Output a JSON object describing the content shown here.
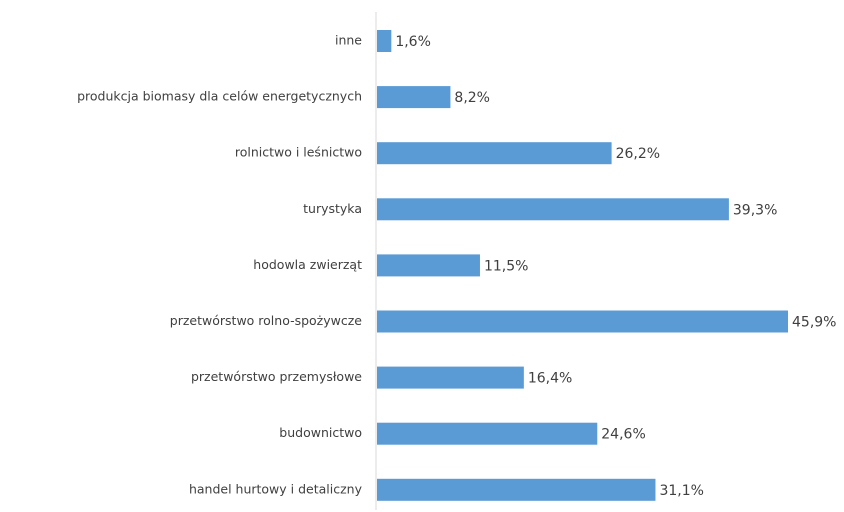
{
  "chart_data": {
    "type": "bar",
    "orientation": "horizontal",
    "title": "",
    "xlabel": "",
    "ylabel": "",
    "grid": false,
    "legend": "none",
    "bar_color": "#5b9bd5",
    "axis_color": "#d9d9d9",
    "xlim": [
      0,
      46
    ],
    "categories": [
      "inne",
      "produkcja biomasy dla celów energetycznych",
      "rolnictwo i leśnictwo",
      "turystyka",
      "hodowla zwierząt",
      "przetwórstwo rolno-spożywcze",
      "przetwórstwo przemysłowe",
      "budownictwo",
      "handel hurtowy i detaliczny"
    ],
    "values": [
      1.6,
      8.2,
      26.2,
      39.3,
      11.5,
      45.9,
      16.4,
      24.6,
      31.1
    ],
    "data_labels": [
      "1,6%",
      "8,2%",
      "26,2%",
      "39,3%",
      "11,5%",
      "45,9%",
      "16,4%",
      "24,6%",
      "31,1%"
    ]
  }
}
